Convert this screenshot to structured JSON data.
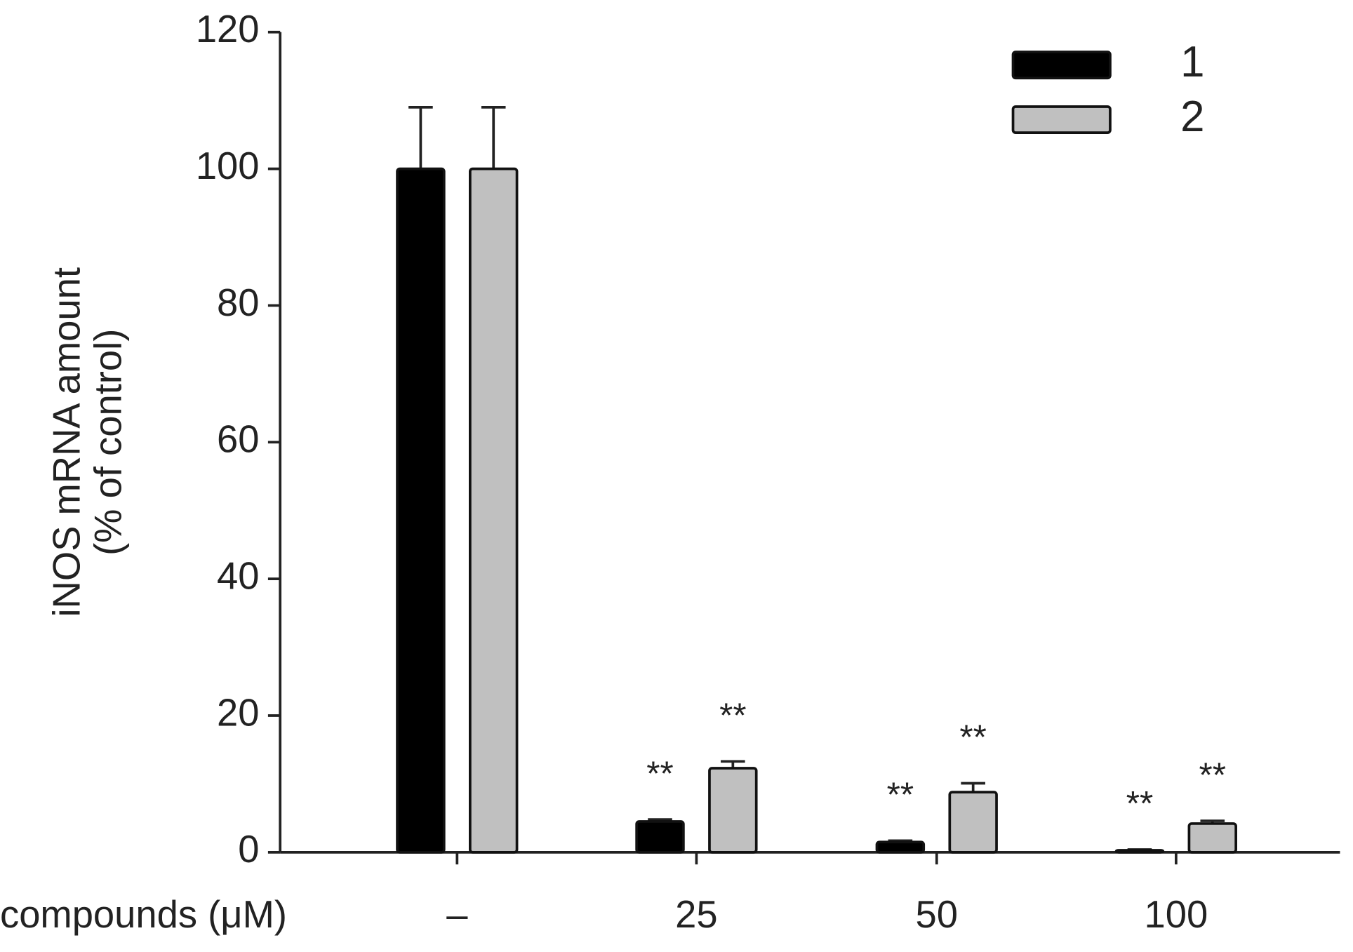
{
  "chart_data": {
    "type": "bar",
    "y_label": [
      "iNOS mRNA amount",
      "(% of control)"
    ],
    "x_label": "compounds (μM)",
    "categories": [
      "–",
      "25",
      "50",
      "100"
    ],
    "series": [
      {
        "name": "1",
        "color": "#000000",
        "values": [
          100,
          4.5,
          1.5,
          0.3
        ],
        "errors": [
          9,
          0.3,
          0.2,
          0.1
        ],
        "annotations": [
          null,
          "**",
          "**",
          "**"
        ]
      },
      {
        "name": "2",
        "color": "#c0c0c0",
        "values": [
          100,
          12.3,
          8.8,
          4.2
        ],
        "errors": [
          9,
          1,
          1.3,
          0.4
        ],
        "annotations": [
          null,
          "**",
          "**",
          "**"
        ]
      }
    ],
    "ylim": [
      0,
      120
    ],
    "yticks": [
      0,
      20,
      40,
      60,
      80,
      100,
      120
    ],
    "legend": "upper right"
  }
}
